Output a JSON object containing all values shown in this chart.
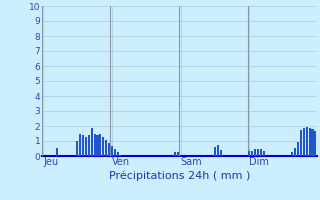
{
  "title": "Précipitations 24h ( mm )",
  "ylabel_values": [
    0,
    1,
    2,
    3,
    4,
    5,
    6,
    7,
    8,
    9,
    10
  ],
  "day_labels": [
    "Jeu",
    "Ven",
    "Sam",
    "Dim"
  ],
  "background_color": "#cceeff",
  "bar_color": "#2255cc",
  "grid_color": "#aacccc",
  "vline_color": "#8899aa",
  "ylim": [
    0,
    10
  ],
  "total_hours": 96,
  "values": [
    0.0,
    0.0,
    0.0,
    0.0,
    0.0,
    0.55,
    0.0,
    0.0,
    0.0,
    0.0,
    0.0,
    0.0,
    1.0,
    1.5,
    1.4,
    1.3,
    1.4,
    1.9,
    1.5,
    1.4,
    1.5,
    1.3,
    1.1,
    0.9,
    0.7,
    0.5,
    0.3,
    0.1,
    0.0,
    0.0,
    0.0,
    0.0,
    0.0,
    0.0,
    0.0,
    0.0,
    0.0,
    0.0,
    0.0,
    0.0,
    0.0,
    0.0,
    0.0,
    0.0,
    0.0,
    0.0,
    0.28,
    0.28,
    0.0,
    0.0,
    0.0,
    0.0,
    0.0,
    0.0,
    0.0,
    0.0,
    0.0,
    0.0,
    0.0,
    0.0,
    0.6,
    0.75,
    0.4,
    0.0,
    0.0,
    0.0,
    0.0,
    0.0,
    0.0,
    0.0,
    0.0,
    0.0,
    0.35,
    0.35,
    0.45,
    0.45,
    0.45,
    0.35,
    0.0,
    0.0,
    0.0,
    0.0,
    0.0,
    0.0,
    0.0,
    0.0,
    0.0,
    0.28,
    0.55,
    0.95,
    1.75,
    1.85,
    1.95,
    1.9,
    1.8,
    1.7
  ],
  "xlabel_color": "#2233aa",
  "tick_color": "#3344bb",
  "spine_color": "#0000cc",
  "day_positions": [
    0,
    24,
    48,
    72
  ]
}
